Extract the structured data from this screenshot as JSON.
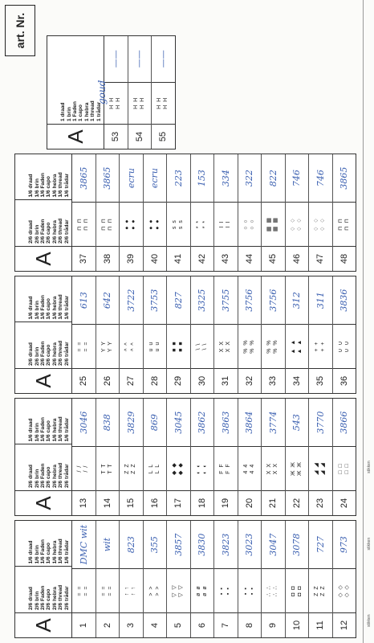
{
  "art_nr": "art. Nr.",
  "header_a": "A",
  "strands_2": [
    "2/6 draad",
    "2/6 brin",
    "2/6 Faden",
    "2/6 capo",
    "2/6 hebra",
    "2/6 thread",
    "2/6 trådar"
  ],
  "strands_1": [
    "1/6 draad",
    "1/6 brin",
    "1/6 Faden",
    "1/6 capo",
    "1/6 hebra",
    "1/6 thread",
    "1/6 trådar"
  ],
  "strands_1b": [
    "1 draad",
    "1 brin",
    "1 Faden",
    "1 capo",
    "1 hebra",
    "1 thread",
    "1 trådar"
  ],
  "blocks": [
    {
      "rows": [
        {
          "n": "1",
          "s": "= =\n= =",
          "c": "DMC wit"
        },
        {
          "n": "2",
          "s": "= =\n= =",
          "c": "wit"
        },
        {
          "n": "3",
          "s": "↑ ↑\n↑ ↑",
          "c": "823"
        },
        {
          "n": "4",
          "s": "> >\n> >",
          "c": "355"
        },
        {
          "n": "5",
          "s": "▽ ▽\n▽ ▽",
          "c": "3857"
        },
        {
          "n": "6",
          "s": "ø ø\nø ø",
          "c": "3830"
        },
        {
          "n": "7",
          "s": "▪ ▪\n▪ ▪",
          "c": "3823"
        },
        {
          "n": "8",
          "s": "▪ ▪\n▪ ▪",
          "c": "3023"
        },
        {
          "n": "9",
          "s": "∴ ∴\n∴ ∴",
          "c": "3047"
        },
        {
          "n": "10",
          "s": "◘ ◘\n◘ ◘",
          "c": "3078"
        },
        {
          "n": "11",
          "s": "Z Z\nZ Z",
          "c": "727"
        },
        {
          "n": "12",
          "s": "◇ ◇\n◇ ◇",
          "c": "973"
        }
      ]
    },
    {
      "rows": [
        {
          "n": "13",
          "s": "/ /\n/ /",
          "c": "3046"
        },
        {
          "n": "14",
          "s": "T T\nT T",
          "c": "838"
        },
        {
          "n": "15",
          "s": "Z Z\nZ Z",
          "c": "3829"
        },
        {
          "n": "16",
          "s": "L L\nL L",
          "c": "869"
        },
        {
          "n": "17",
          "s": "◆ ◆\n◆ ◆",
          "c": "3045"
        },
        {
          "n": "18",
          "s": "◐ ◐\n◐ ◐",
          "c": "3862"
        },
        {
          "n": "19",
          "s": "F F\nF F",
          "c": "3863"
        },
        {
          "n": "20",
          "s": "4 4\n4 4",
          "c": "3864"
        },
        {
          "n": "21",
          "s": "X X\nX X",
          "c": "3774"
        },
        {
          "n": "22",
          "s": "Ж Ж\nЖ Ж",
          "c": "543"
        },
        {
          "n": "23",
          "s": "◢ ◢\n◢ ◢",
          "c": "3770"
        },
        {
          "n": "24",
          "s": "□ □\n□ □",
          "c": "3866"
        }
      ]
    },
    {
      "rows": [
        {
          "n": "25",
          "s": "= =\n= =",
          "c": "613"
        },
        {
          "n": "26",
          "s": "Y Y\nY Y",
          "c": "642"
        },
        {
          "n": "27",
          "s": "^ ^\n^ ^",
          "c": "3722"
        },
        {
          "n": "28",
          "s": "u u\nu u",
          "c": "3753"
        },
        {
          "n": "29",
          "s": "■ ■\n■ ■",
          "c": "827"
        },
        {
          "n": "30",
          "s": "\\ \\\n\\ \\",
          "c": "3325"
        },
        {
          "n": "31",
          "s": "X X\nX X",
          "c": "3755"
        },
        {
          "n": "32",
          "s": "% %\n% %",
          "c": "3756"
        },
        {
          "n": "33",
          "s": "% %\n% %",
          "c": "3756"
        },
        {
          "n": "34",
          "s": "▲ ▲\n▲ ▲",
          "c": "312"
        },
        {
          "n": "35",
          "s": "+ +\n+ +",
          "c": "311"
        },
        {
          "n": "36",
          "s": "∪ ∪\n∪ ∪",
          "c": "3836"
        }
      ]
    },
    {
      "rows": [
        {
          "n": "37",
          "s": "⊓ ⊓\n⊓ ⊓",
          "c": "3865"
        },
        {
          "n": "38",
          "s": "⊓ ⊓\n⊓ ⊓",
          "c": "3865"
        },
        {
          "n": "39",
          "s": "● ●\n● ●",
          "c": "ecru"
        },
        {
          "n": "40",
          "s": "● ●\n● ●",
          "c": "ecru"
        },
        {
          "n": "41",
          "s": "s s\ns s",
          "c": "223"
        },
        {
          "n": "42",
          "s": "* *\n* *",
          "c": "153"
        },
        {
          "n": "43",
          "s": "I I\nI I",
          "c": "334"
        },
        {
          "n": "44",
          "s": "○ ○\n○ ○",
          "c": "322"
        },
        {
          "n": "45",
          "s": "▦ ▦\n▦ ▦",
          "c": "822"
        },
        {
          "n": "46",
          "s": "♢ ♢\n♢ ♢",
          "c": "746"
        },
        {
          "n": "47",
          "s": "♢ ♢\n♢ ♢",
          "c": "746"
        },
        {
          "n": "48",
          "s": "⊓ ⊓\n⊓ ⊓",
          "c": "3865"
        }
      ]
    },
    {
      "rows": [
        {
          "n": "53",
          "s": "H H\nH H",
          "c": "——"
        },
        {
          "n": "54",
          "s": "H H\nH H",
          "c": "——"
        },
        {
          "n": "55",
          "s": "H H\nH H",
          "c": "——"
        }
      ]
    }
  ],
  "gold_note": "goud",
  "footer": [
    "stikken",
    "stikken",
    "stikken"
  ]
}
